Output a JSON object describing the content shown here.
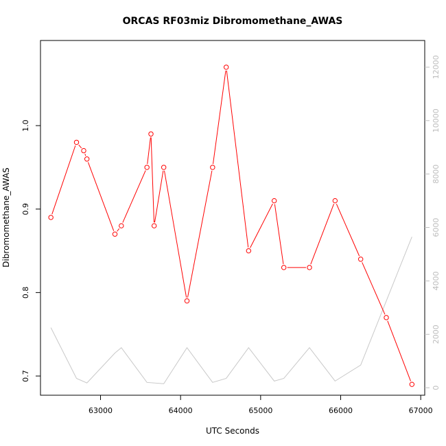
{
  "chart_data": {
    "type": "line",
    "title": "ORCAS RF03miz Dibromomethane_AWAS",
    "xlabel": "UTC Seconds",
    "ylabel": "Dibromomethane_AWAS",
    "xlim": [
      62250,
      67050
    ],
    "ylim": [
      0.677,
      1.102
    ],
    "y2lim": [
      -280,
      13000
    ],
    "x_ticks": [
      63000,
      64000,
      65000,
      66000,
      67000
    ],
    "y_ticks": [
      0.7,
      0.8,
      0.9,
      1.0
    ],
    "y2_ticks": [
      0,
      2000,
      4000,
      6000,
      8000,
      10000,
      12000
    ],
    "grid": false,
    "series": [
      {
        "axis": "left",
        "color": "#ff0000",
        "marker": "open-circle",
        "x": [
          62380,
          62700,
          62790,
          62830,
          63180,
          63260,
          63580,
          63630,
          63670,
          63790,
          64080,
          64400,
          64570,
          64850,
          65170,
          65290,
          65610,
          65930,
          66250,
          66570,
          66890
        ],
        "values": [
          0.89,
          0.98,
          0.97,
          0.96,
          0.87,
          0.88,
          0.95,
          0.99,
          0.88,
          0.95,
          0.79,
          0.95,
          1.07,
          0.85,
          0.91,
          0.83,
          0.83,
          0.91,
          0.84,
          0.77,
          0.69
        ]
      },
      {
        "axis": "right",
        "color": "#c8c8c8",
        "marker": "none",
        "x": [
          62380,
          62700,
          62830,
          63180,
          63260,
          63580,
          63790,
          64080,
          64400,
          64570,
          64850,
          65170,
          65290,
          65610,
          65930,
          66250,
          66890
        ],
        "values": [
          2250,
          350,
          180,
          1300,
          1500,
          200,
          150,
          1500,
          200,
          350,
          1500,
          250,
          350,
          1500,
          250,
          850,
          5650
        ]
      }
    ]
  }
}
